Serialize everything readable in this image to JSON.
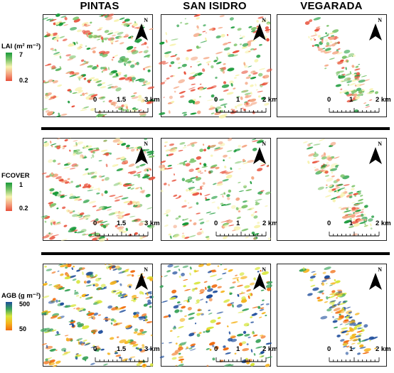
{
  "columns": [
    "PINTAS",
    "SAN ISIDRO",
    "VEGARADA"
  ],
  "north_label": "N",
  "rows": [
    {
      "variable": "LAI",
      "legend_title": "LAI (m² m⁻²)",
      "legend_max": "7",
      "legend_min": "0.2",
      "ramp": [
        "#1a9a3a",
        "#7cc46a",
        "#f7f3b0",
        "#f4a582",
        "#e8503a"
      ]
    },
    {
      "variable": "FCOVER",
      "legend_title": "FCOVER",
      "legend_max": "1",
      "legend_min": "0.2",
      "ramp": [
        "#1a9a3a",
        "#7cc46a",
        "#f7f3b0",
        "#f4a582",
        "#e8503a"
      ]
    },
    {
      "variable": "AGB",
      "legend_title": "AGB (g m⁻²)",
      "legend_max": "500",
      "legend_min": "50",
      "ramp": [
        "#1f4e9c",
        "#3aa35a",
        "#d8e63c",
        "#f5b31c",
        "#f06c10"
      ]
    }
  ],
  "scalebars": [
    {
      "labels": [
        "0",
        "1.5",
        "3 km"
      ]
    },
    {
      "labels": [
        "0",
        "1",
        "2 km"
      ]
    },
    {
      "labels": [
        "0",
        "1",
        "2 km"
      ]
    }
  ]
}
